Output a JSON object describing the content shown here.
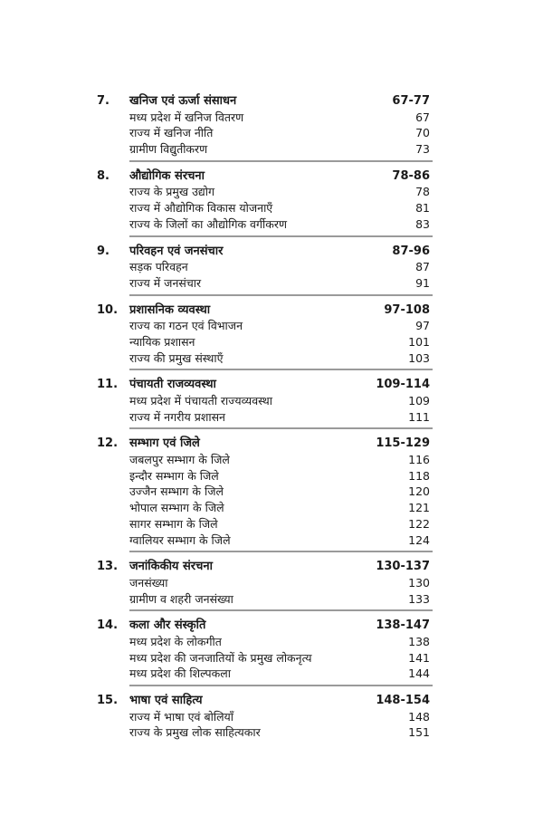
{
  "chapters": [
    {
      "number": "7.",
      "title": "खनिज एवं ऊर्जा संसाधन",
      "pages": "67-77",
      "topics": [
        {
          "title": "मध्य प्रदेश में खनिज वितरण",
          "page": "67"
        },
        {
          "title": "राज्य में खनिज नीति",
          "page": "70"
        },
        {
          "title": "ग्रामीण विद्युतीकरण",
          "page": "73"
        }
      ]
    },
    {
      "number": "8.",
      "title": "औद्योगिक संरचना",
      "pages": "78-86",
      "topics": [
        {
          "title": "राज्य के प्रमुख उद्योग",
          "page": "78"
        },
        {
          "title": "राज्य में औद्योगिक विकास योजनाएँ",
          "page": "81"
        },
        {
          "title": "राज्य के जिलों का औद्योगिक वर्गीकरण",
          "page": "83"
        }
      ]
    },
    {
      "number": "9.",
      "title": "परिवहन एवं जनसंचार",
      "pages": "87-96",
      "topics": [
        {
          "title": "सड़क परिवहन",
          "page": "87"
        },
        {
          "title": "राज्य में जनसंचार",
          "page": "91"
        }
      ]
    },
    {
      "number": "10.",
      "title": "प्रशासनिक व्यवस्था",
      "pages": "97-108",
      "topics": [
        {
          "title": "राज्य का गठन एवं विभाजन",
          "page": "97"
        },
        {
          "title": "न्यायिक प्रशासन",
          "page": "101"
        },
        {
          "title": "राज्य की प्रमुख संस्थाएँ",
          "page": "103"
        }
      ]
    },
    {
      "number": "11.",
      "title": "पंचायती राजव्यवस्था",
      "pages": "109-114",
      "topics": [
        {
          "title": "मध्य प्रदेश में पंचायती राज्यव्यवस्था",
          "page": "109"
        },
        {
          "title": "राज्य में नगरीय प्रशासन",
          "page": "111"
        }
      ]
    },
    {
      "number": "12.",
      "title": "सम्भाग एवं जिले",
      "pages": "115-129",
      "topics": [
        {
          "title": "जबलपुर सम्भाग के जिले",
          "page": "116"
        },
        {
          "title": "इन्दौर सम्भाग के जिले",
          "page": "118"
        },
        {
          "title": "उज्जैन सम्भाग के जिले",
          "page": "120"
        },
        {
          "title": "भोपाल सम्भाग के जिले",
          "page": "121"
        },
        {
          "title": "सागर सम्भाग के जिले",
          "page": "122"
        },
        {
          "title": "ग्वालियर सम्भाग के जिले",
          "page": "124"
        }
      ]
    },
    {
      "number": "13.",
      "title": "जनांकिकीय संरचना",
      "pages": "130-137",
      "topics": [
        {
          "title": "जनसंख्या",
          "page": "130"
        },
        {
          "title": "ग्रामीण व शहरी जनसंख्या",
          "page": "133"
        }
      ]
    },
    {
      "number": "14.",
      "title": "कला और संस्कृति",
      "pages": "138-147",
      "topics": [
        {
          "title": "मध्य प्रदेश के लोकगीत",
          "page": "138"
        },
        {
          "title": "मध्य प्रदेश की जनजातियों के प्रमुख लोकनृत्य",
          "page": "141"
        },
        {
          "title": "मध्य प्रदेश की शिल्पकला",
          "page": "144"
        }
      ]
    },
    {
      "number": "15.",
      "title": "भाषा एवं साहित्य",
      "pages": "148-154",
      "topics": [
        {
          "title": "राज्य में भाषा एवं बोलियाँ",
          "page": "148"
        },
        {
          "title": "राज्य के प्रमुख लोक साहित्यकार",
          "page": "151"
        }
      ]
    }
  ]
}
